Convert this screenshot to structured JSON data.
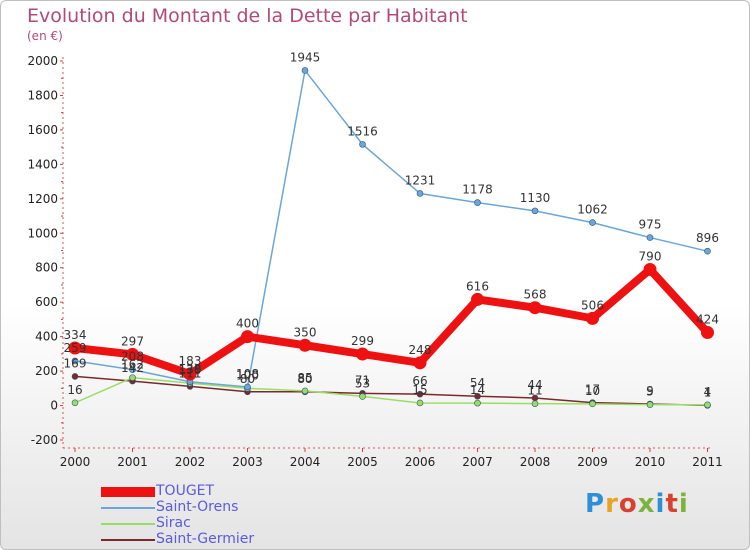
{
  "title": "Evolution du Montant de la Dette par Habitant",
  "subtitle": "(en €)",
  "logo": {
    "text": "Proxiti",
    "colors": [
      "#2f8fd6",
      "#e8a323",
      "#d9412f",
      "#7cb33a",
      "#2f8fd6",
      "#d9412f",
      "#7cb33a"
    ]
  },
  "chart_data": {
    "type": "line",
    "categories": [
      "2000",
      "2001",
      "2002",
      "2003",
      "2004",
      "2005",
      "2006",
      "2007",
      "2008",
      "2009",
      "2010",
      "2011"
    ],
    "ylim": [
      -200,
      2000
    ],
    "yticks": [
      -200,
      0,
      200,
      400,
      600,
      800,
      1000,
      1200,
      1400,
      1600,
      1800,
      2000
    ],
    "series": [
      {
        "name": "TOUGET",
        "color": "#ee1111",
        "width": 8,
        "values": [
          334,
          297,
          183,
          400,
          350,
          299,
          248,
          616,
          568,
          506,
          790,
          424
        ]
      },
      {
        "name": "Saint-Orens",
        "color": "#6aa6d8",
        "width": 1.5,
        "values": [
          259,
          208,
          138,
          108,
          1945,
          1516,
          1231,
          1178,
          1130,
          1062,
          975,
          896
        ]
      },
      {
        "name": "Sirac",
        "color": "#99dd66",
        "width": 1.5,
        "values": [
          16,
          162,
          130,
          100,
          85,
          53,
          15,
          14,
          11,
          10,
          5,
          4
        ]
      },
      {
        "name": "Saint-Germier",
        "color": "#7a2a2a",
        "width": 1.5,
        "values": [
          169,
          142,
          111,
          80,
          80,
          71,
          66,
          54,
          44,
          17,
          9,
          1
        ]
      }
    ]
  }
}
